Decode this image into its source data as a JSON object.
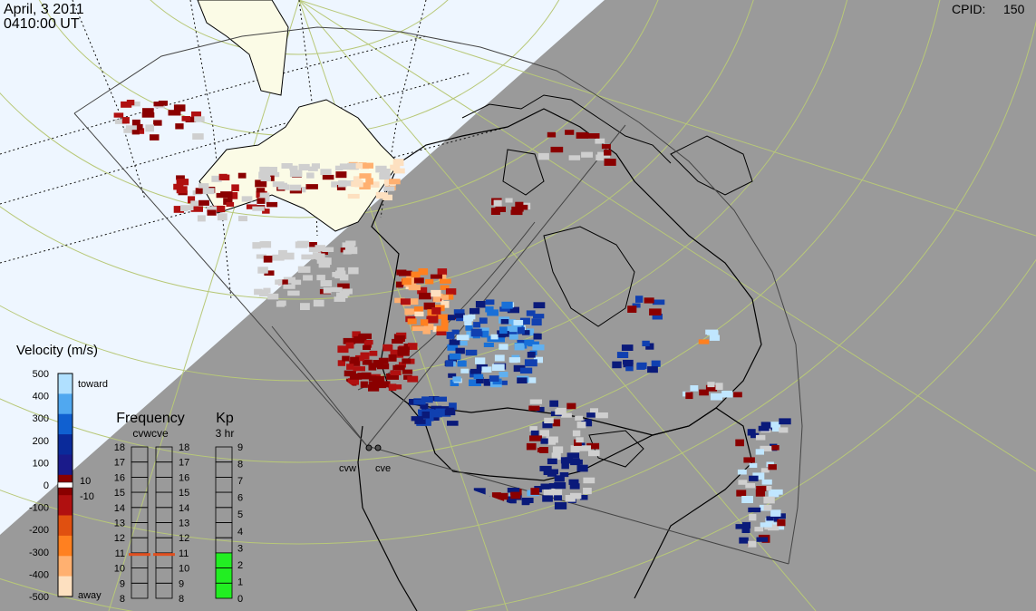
{
  "header": {
    "date": "April, 3 2011",
    "time": "0410:00 UT",
    "cpid_label": "CPID:",
    "cpid_value": "150"
  },
  "radars": {
    "west": "cvw",
    "east": "cve"
  },
  "velocity_scale": {
    "title": "Velocity (m/s)",
    "ticks": [
      "500",
      "400",
      "300",
      "200",
      "100",
      "0",
      "-100",
      "-200",
      "-300",
      "-400",
      "-500"
    ],
    "toward_label": "toward",
    "away_label": "away",
    "small_labels": [
      "10",
      "-10"
    ],
    "colors": [
      "#fde0c0",
      "#ffb070",
      "#ff8020",
      "#e05010",
      "#b01010",
      "#8a0000",
      "#1a1a8a",
      "#0a2a9a",
      "#1060d0",
      "#50a8f0",
      "#b0e0ff"
    ]
  },
  "frequency_panel": {
    "title": "Frequency",
    "subtitle": "cvwcve",
    "ticks": [
      "18",
      "17",
      "16",
      "15",
      "14",
      "13",
      "12",
      "11",
      "10",
      "9",
      "8"
    ],
    "cvw_freq": 10.9,
    "cve_freq": 10.9,
    "marker_color": "#e05020"
  },
  "kp_panel": {
    "title": "Kp",
    "subtitle": "3 hr",
    "ticks": [
      "9",
      "8",
      "7",
      "6",
      "5",
      "4",
      "3",
      "2",
      "1",
      "0"
    ],
    "value": 3,
    "fill_color": "#22ee22"
  },
  "map_colors": {
    "day_side": "#eef6ff",
    "night_side": "#9a9a9a",
    "land_day": "#fbfbe6",
    "grid": "#b8c878"
  }
}
